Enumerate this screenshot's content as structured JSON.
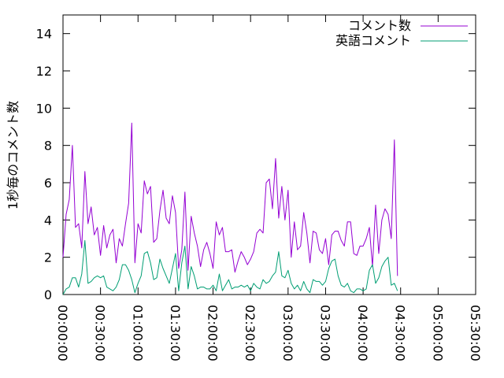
{
  "chart_data": {
    "type": "line",
    "ylabel": "1秒毎のコメント数",
    "xlabel": "",
    "title": "",
    "xlim": [
      "00:00:00",
      "05:30:00"
    ],
    "ylim": [
      0,
      15
    ],
    "y_ticks": [
      0,
      2,
      4,
      6,
      8,
      10,
      12,
      14
    ],
    "x_ticks": [
      "00:00:00",
      "00:30:00",
      "01:00:00",
      "01:30:00",
      "02:00:00",
      "02:30:00",
      "03:00:00",
      "03:30:00",
      "04:00:00",
      "04:30:00",
      "05:00:00",
      "05:30:00"
    ],
    "grid": false,
    "legend_position": "top-right",
    "x_step_minutes": 2.5,
    "series": [
      {
        "name": "コメント数",
        "color": "#9400d3",
        "values": [
          2.0,
          4.3,
          5.1,
          8.0,
          3.6,
          3.8,
          2.5,
          6.6,
          3.8,
          4.7,
          3.2,
          3.6,
          2.1,
          3.7,
          2.5,
          3.2,
          3.5,
          1.7,
          3.0,
          2.6,
          3.8,
          4.9,
          9.2,
          1.7,
          3.8,
          3.3,
          6.1,
          5.4,
          5.8,
          2.8,
          3.0,
          4.5,
          5.6,
          4.1,
          3.8,
          5.3,
          4.4,
          1.4,
          2.4,
          5.5,
          1.3,
          4.2,
          3.3,
          2.6,
          1.5,
          2.4,
          2.8,
          2.2,
          1.4,
          3.9,
          3.2,
          3.6,
          2.3,
          2.3,
          2.4,
          1.2,
          1.8,
          2.3,
          2.0,
          1.6,
          1.9,
          2.3,
          3.3,
          3.5,
          3.3,
          6.0,
          6.2,
          4.6,
          7.3,
          4.1,
          5.8,
          4.0,
          5.6,
          2.0,
          3.9,
          2.4,
          2.6,
          4.4,
          3.3,
          1.7,
          3.4,
          3.3,
          2.4,
          2.2,
          3.0,
          1.6,
          3.2,
          3.4,
          3.4,
          2.9,
          2.6,
          3.9,
          3.9,
          2.2,
          2.1,
          2.6,
          2.6,
          3.0,
          3.6,
          1.5,
          4.8,
          2.2,
          4.0,
          4.6,
          4.3,
          3.0,
          8.3,
          1.0
        ]
      },
      {
        "name": "英語コメント",
        "color": "#009e73",
        "values": [
          0.0,
          0.3,
          0.4,
          0.9,
          0.9,
          0.4,
          1.1,
          2.9,
          0.6,
          0.7,
          0.9,
          1.0,
          0.9,
          1.0,
          0.4,
          0.3,
          0.2,
          0.4,
          0.8,
          1.6,
          1.6,
          1.3,
          0.8,
          0.1,
          0.6,
          1.0,
          2.2,
          2.3,
          1.7,
          0.8,
          0.9,
          1.9,
          1.4,
          1.0,
          0.6,
          1.4,
          2.2,
          0.2,
          1.7,
          2.6,
          0.3,
          1.5,
          1.0,
          0.3,
          0.4,
          0.4,
          0.3,
          0.3,
          0.5,
          0.2,
          1.1,
          0.2,
          0.5,
          0.8,
          0.3,
          0.4,
          0.4,
          0.5,
          0.4,
          0.5,
          0.2,
          0.6,
          0.4,
          0.3,
          0.8,
          0.6,
          0.7,
          1.0,
          1.2,
          2.3,
          1.0,
          0.9,
          1.3,
          0.6,
          0.3,
          0.5,
          0.2,
          0.7,
          0.3,
          0.1,
          0.8,
          0.7,
          0.7,
          0.5,
          0.7,
          1.4,
          1.8,
          1.9,
          1.0,
          0.5,
          0.4,
          0.6,
          0.2,
          0.1,
          0.3,
          0.3,
          0.2,
          0.3,
          1.3,
          1.6,
          0.6,
          0.9,
          1.5,
          1.8,
          2.0,
          0.5,
          0.6,
          0.2
        ]
      }
    ]
  }
}
